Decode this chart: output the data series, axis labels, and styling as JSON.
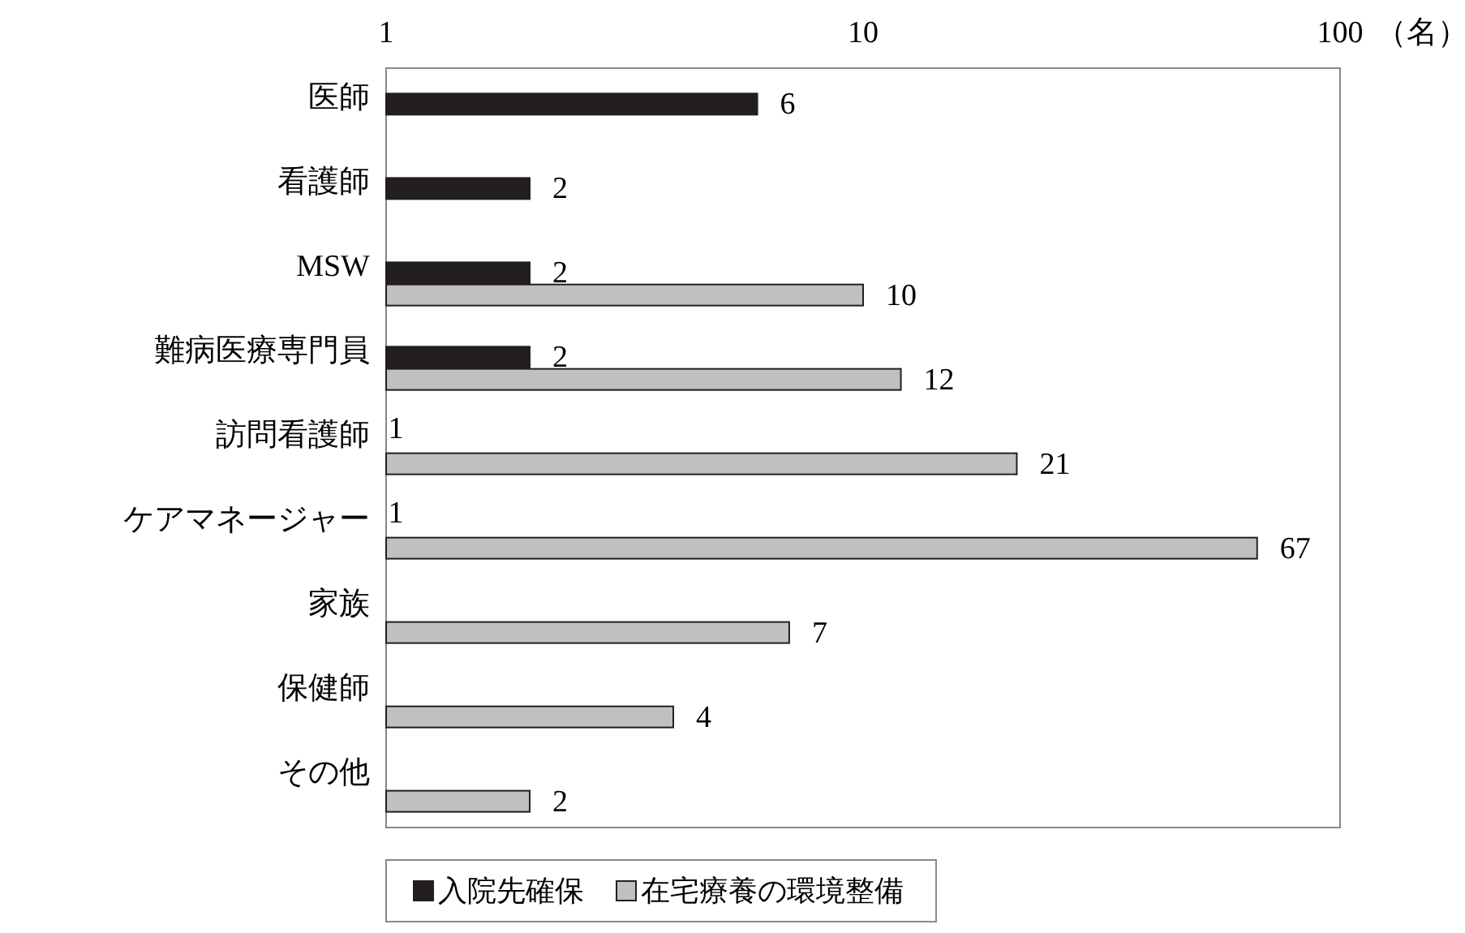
{
  "chart_data": {
    "type": "bar",
    "orientation": "horizontal",
    "log": "x",
    "xlim": [
      1,
      100
    ],
    "xticks": [
      1,
      10,
      100
    ],
    "xlabel": "（名）",
    "categories": [
      "医師",
      "看護師",
      "MSW",
      "難病医療専門員",
      "訪問看護師",
      "ケアマネージャー",
      "家族",
      "保健師",
      "その他"
    ],
    "series": [
      {
        "name": "入院先確保",
        "color": "#231f20",
        "values": [
          6,
          2,
          2,
          2,
          1,
          1,
          null,
          null,
          null
        ]
      },
      {
        "name": "在宅療養の環境整備",
        "color": "#c0c0c0",
        "values": [
          null,
          null,
          10,
          12,
          21,
          67,
          7,
          4,
          2
        ]
      }
    ],
    "data_labels": true,
    "grid": false,
    "legend": "bottom"
  }
}
